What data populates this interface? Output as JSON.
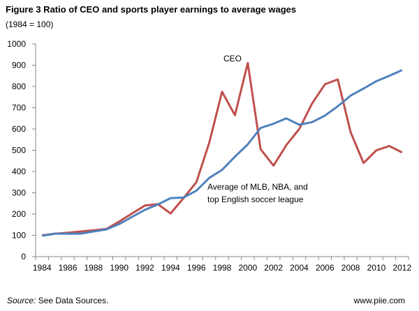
{
  "chart_data": {
    "type": "line",
    "title": "Figure 3 Ratio of CEO and sports player earnings to average wages",
    "subtitle": "(1984 = 100)",
    "x": [
      1984,
      1985,
      1986,
      1987,
      1988,
      1989,
      1990,
      1991,
      1992,
      1993,
      1994,
      1995,
      1996,
      1997,
      1998,
      1999,
      2000,
      2001,
      2002,
      2003,
      2004,
      2005,
      2006,
      2007,
      2008,
      2009,
      2010,
      2011,
      2012
    ],
    "x_tick_labels": [
      "1984",
      "1986",
      "1988",
      "1990",
      "1992",
      "1994",
      "1996",
      "1998",
      "2000",
      "2002",
      "2004",
      "2006",
      "2008",
      "2010",
      "2012"
    ],
    "y_tick_labels": [
      "0",
      "100",
      "200",
      "300",
      "400",
      "500",
      "600",
      "700",
      "800",
      "900",
      "1000"
    ],
    "ylim": [
      0,
      1000
    ],
    "grid": false,
    "series": [
      {
        "name": "CEO",
        "color": "#c0504d",
        "values": [
          100,
          108,
          112,
          118,
          124,
          130,
          165,
          203,
          240,
          247,
          203,
          275,
          350,
          535,
          775,
          665,
          910,
          505,
          428,
          525,
          600,
          720,
          810,
          833,
          585,
          440,
          500,
          520,
          490
        ]
      },
      {
        "name": "Average of MLB, NBA, and top English soccer league",
        "name_lines": [
          "Average of MLB, NBA, and",
          "top English soccer league"
        ],
        "color": "#4f81bd",
        "values": [
          98,
          108,
          108,
          108,
          118,
          128,
          153,
          187,
          220,
          245,
          275,
          278,
          310,
          370,
          408,
          470,
          528,
          605,
          625,
          650,
          620,
          632,
          663,
          707,
          757,
          790,
          825,
          850,
          877
        ]
      }
    ]
  },
  "footer": {
    "source_label": "Source:",
    "source_text": " See Data Sources.",
    "site": "www.piie.com"
  }
}
